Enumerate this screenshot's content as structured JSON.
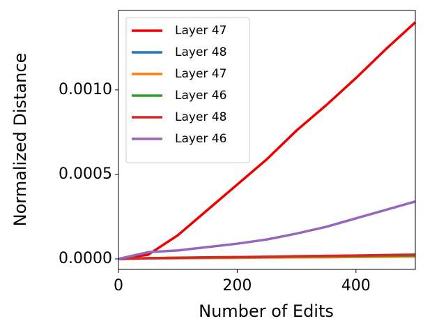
{
  "chart_data": {
    "type": "line",
    "xlabel": "Number of Edits",
    "ylabel": "Normalized Distance",
    "x": [
      0,
      50,
      100,
      150,
      200,
      250,
      300,
      350,
      400,
      450,
      500
    ],
    "xlim": [
      0,
      500
    ],
    "xticks": [
      0,
      200,
      400
    ],
    "ylim": [
      -6.2e-05,
      0.00147
    ],
    "yticks": [
      {
        "value": 0,
        "label": "0.0000"
      },
      {
        "value": 0.0005,
        "label": "0.0005"
      },
      {
        "value": 0.001,
        "label": "0.0010"
      }
    ],
    "legend": "upper left",
    "series": [
      {
        "name": "Layer 47",
        "color": "#ee0000",
        "values": [
          0,
          2.5e-05,
          0.00014,
          0.00029,
          0.00044,
          0.00059,
          0.00076,
          0.00091,
          0.00107,
          0.00124,
          0.0014
        ]
      },
      {
        "name": "Layer 48",
        "color": "#1f77b4",
        "values": [
          0,
          4e-06,
          6e-06,
          8e-06,
          1e-05,
          1.2e-05,
          1.4e-05,
          1.6e-05,
          1.7e-05,
          1.9e-05,
          2e-05
        ]
      },
      {
        "name": "Layer 47",
        "color": "#ff7f0e",
        "values": [
          0,
          3e-06,
          4e-06,
          5e-06,
          6e-06,
          8e-06,
          9e-06,
          1e-05,
          1.2e-05,
          1.3e-05,
          1.5e-05
        ]
      },
      {
        "name": "Layer 46",
        "color": "#2ca02c",
        "values": [
          0,
          4e-06,
          6e-06,
          8e-06,
          1e-05,
          1.2e-05,
          1.4e-05,
          1.6e-05,
          1.7e-05,
          1.9e-05,
          2e-05
        ]
      },
      {
        "name": "Layer 48",
        "color": "#d62728",
        "values": [
          0,
          4e-06,
          7e-06,
          9e-06,
          1.1e-05,
          1.3e-05,
          1.6e-05,
          1.8e-05,
          2e-05,
          2.3e-05,
          2.5e-05
        ]
      },
      {
        "name": "Layer 46",
        "color": "#9467bd",
        "values": [
          0,
          4e-05,
          5e-05,
          7e-05,
          9e-05,
          0.000115,
          0.00015,
          0.00019,
          0.00024,
          0.00029,
          0.00034
        ]
      }
    ]
  }
}
